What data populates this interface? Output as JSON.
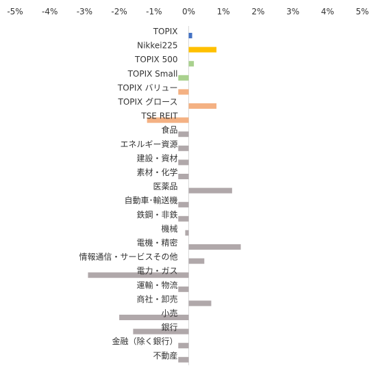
{
  "chart_data": {
    "type": "bar",
    "orientation": "horizontal",
    "xlim": [
      -5,
      5
    ],
    "x_ticks": [
      "-5%",
      "-4%",
      "-3%",
      "-2%",
      "-1%",
      "0%",
      "1%",
      "2%",
      "3%",
      "4%",
      "5%"
    ],
    "x_tick_values": [
      -5,
      -4,
      -3,
      -2,
      -1,
      0,
      1,
      2,
      3,
      4,
      5
    ],
    "x_axis_position": "top",
    "grid": false,
    "legend": "none",
    "categories": [
      "TOPIX",
      "Nikkei225",
      "TOPIX 500",
      "TOPIX Small",
      "TOPIX バリュー",
      "TOPIX グロース",
      "TSE REIT",
      "食品",
      "エネルギー資源",
      "建設・資材",
      "素材・化学",
      "医薬品",
      "自動車･輸送機",
      "鉄鋼・非鉄",
      "機械",
      "電機・精密",
      "情報通信・サービスその他",
      "電力・ガス",
      "運輸・物流",
      "商社・卸売",
      "小売",
      "銀行",
      "金融（除く銀行）",
      "不動産"
    ],
    "values": [
      0.1,
      0.8,
      0.15,
      -0.3,
      -0.3,
      0.8,
      -1.2,
      -0.3,
      -0.3,
      -0.3,
      -0.3,
      1.25,
      -0.3,
      -0.3,
      -0.1,
      1.5,
      0.45,
      -2.9,
      -0.3,
      0.65,
      -2.0,
      -1.6,
      -0.3,
      -0.3
    ],
    "bar_colors": [
      "#4472C4",
      "#FFC000",
      "#A9D18E",
      "#A9D18E",
      "#F4B183",
      "#F4B183",
      "#F4B183",
      "#B0A8AA",
      "#B0A8AA",
      "#B0A8AA",
      "#B0A8AA",
      "#B0A8AA",
      "#B0A8AA",
      "#B0A8AA",
      "#B0A8AA",
      "#B0A8AA",
      "#B0A8AA",
      "#B0A8AA",
      "#B0A8AA",
      "#B0A8AA",
      "#B0A8AA",
      "#B0A8AA",
      "#B0A8AA",
      "#B0A8AA"
    ],
    "axis_color": "#D9D9D9"
  }
}
